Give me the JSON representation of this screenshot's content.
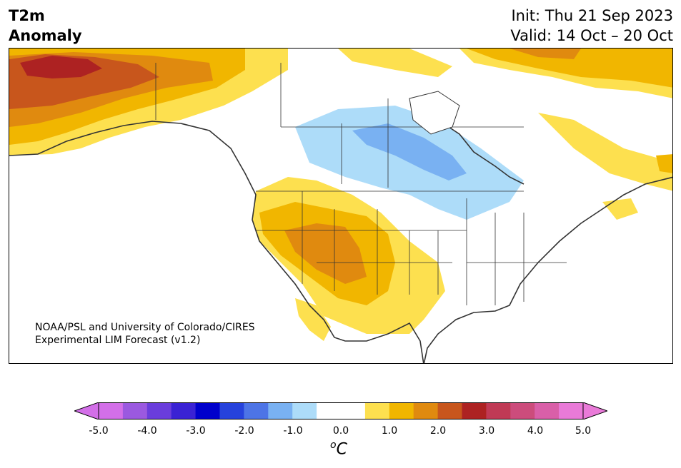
{
  "header": {
    "title_line1": "T2m",
    "title_line2": "Anomaly",
    "init_label": "Init: Thu 21 Sep 2023",
    "valid_label": "Valid: 14 Oct – 20 Oct"
  },
  "credit": {
    "line1": "NOAA/PSL and University of Colorado/CIRES",
    "line2": "Experimental LIM Forecast (v1.2)"
  },
  "colorbar": {
    "tick_labels": [
      "-5.0",
      "-4.0",
      "-3.0",
      "-2.0",
      "-1.0",
      "0.0",
      "1.0",
      "2.0",
      "3.0",
      "4.0",
      "5.0"
    ],
    "unit_base": "C",
    "unit_sup": "o",
    "colors": [
      "#d36fe8",
      "#9b59e0",
      "#6a3ddc",
      "#3a22d4",
      "#0000cc",
      "#2642dc",
      "#4d74e6",
      "#79b1f2",
      "#addcf9",
      "#ffffff",
      "#ffffff",
      "#fde04f",
      "#f1b600",
      "#e08a0f",
      "#c8561c",
      "#ad2222",
      "#c03a55",
      "#cc4c7c",
      "#d95fa8",
      "#e97ad8"
    ],
    "extend_low": "#d36fe8",
    "extend_high": "#e97ad8"
  },
  "map": {
    "region": "North America",
    "palette": {
      "light_yellow": "#fde04f",
      "yellow": "#f1b600",
      "orange": "#e08a0f",
      "dark_orange": "#c8561c",
      "red": "#ad2222",
      "light_blue": "#addcf9",
      "blue": "#79b1f2",
      "border": "#333333"
    }
  }
}
